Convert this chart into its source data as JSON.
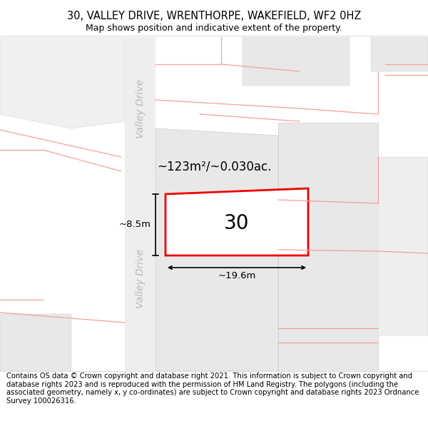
{
  "title_line1": "30, VALLEY DRIVE, WRENTHORPE, WAKEFIELD, WF2 0HZ",
  "title_line2": "Map shows position and indicative extent of the property.",
  "footer_text": "Contains OS data © Crown copyright and database right 2021. This information is subject to Crown copyright and database rights 2023 and is reproduced with the permission of HM Land Registry. The polygons (including the associated geometry, namely x, y co-ordinates) are subject to Crown copyright and database rights 2023 Ordnance Survey 100026316.",
  "area_label": "~123m²/~0.030ac.",
  "width_label": "~19.6m",
  "height_label": "~8.5m",
  "plot_number": "30",
  "plot_border_color": "#ee0000",
  "pink_line_color": "#f4a0a0",
  "parcel_fill": "#e8e8e8",
  "road_fill": "#f0f0f0",
  "valley_drive_color": "#c8c8c8",
  "title_fontsize": 10.5,
  "subtitle_fontsize": 9,
  "footer_fontsize": 7.2,
  "label_fontsize": 12,
  "number_fontsize": 20,
  "dim_fontsize": 9.5,
  "valley_fontsize": 10
}
